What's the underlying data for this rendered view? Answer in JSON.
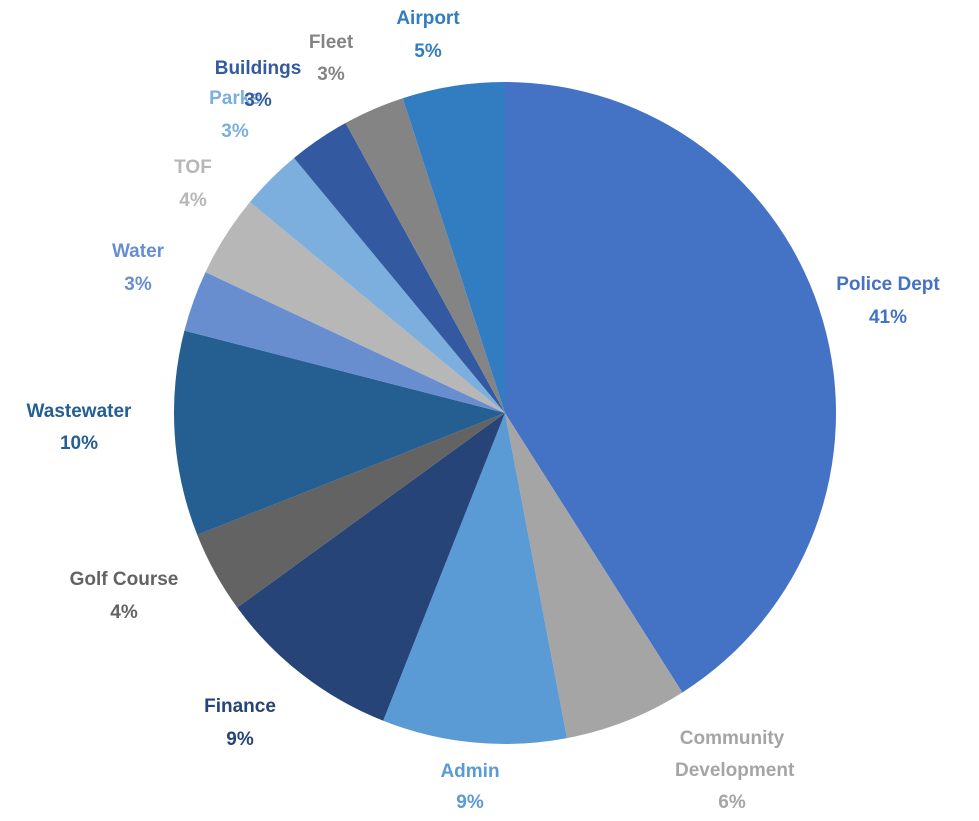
{
  "chart_data": {
    "type": "pie",
    "categories": [
      "Police Dept",
      "Community Development",
      "Admin",
      "Finance",
      "Golf Course",
      "Wastewater",
      "Water",
      "TOF",
      "Parks",
      "Buildings",
      "Fleet",
      "Airport"
    ],
    "values": [
      41,
      6,
      9,
      9,
      4,
      10,
      3,
      4,
      3,
      3,
      3,
      5
    ],
    "value_labels": [
      "41%",
      "6%",
      "9%",
      "9%",
      "4%",
      "10%",
      "3%",
      "4%",
      "3%",
      "3%",
      "3%",
      "5%"
    ],
    "colors": [
      "#4472c4",
      "#a5a5a5",
      "#5b9bd5",
      "#264478",
      "#636363",
      "#255e91",
      "#698ed0",
      "#b7b7b7",
      "#7cafdd",
      "#335aa1",
      "#848484",
      "#327dc2"
    ]
  }
}
